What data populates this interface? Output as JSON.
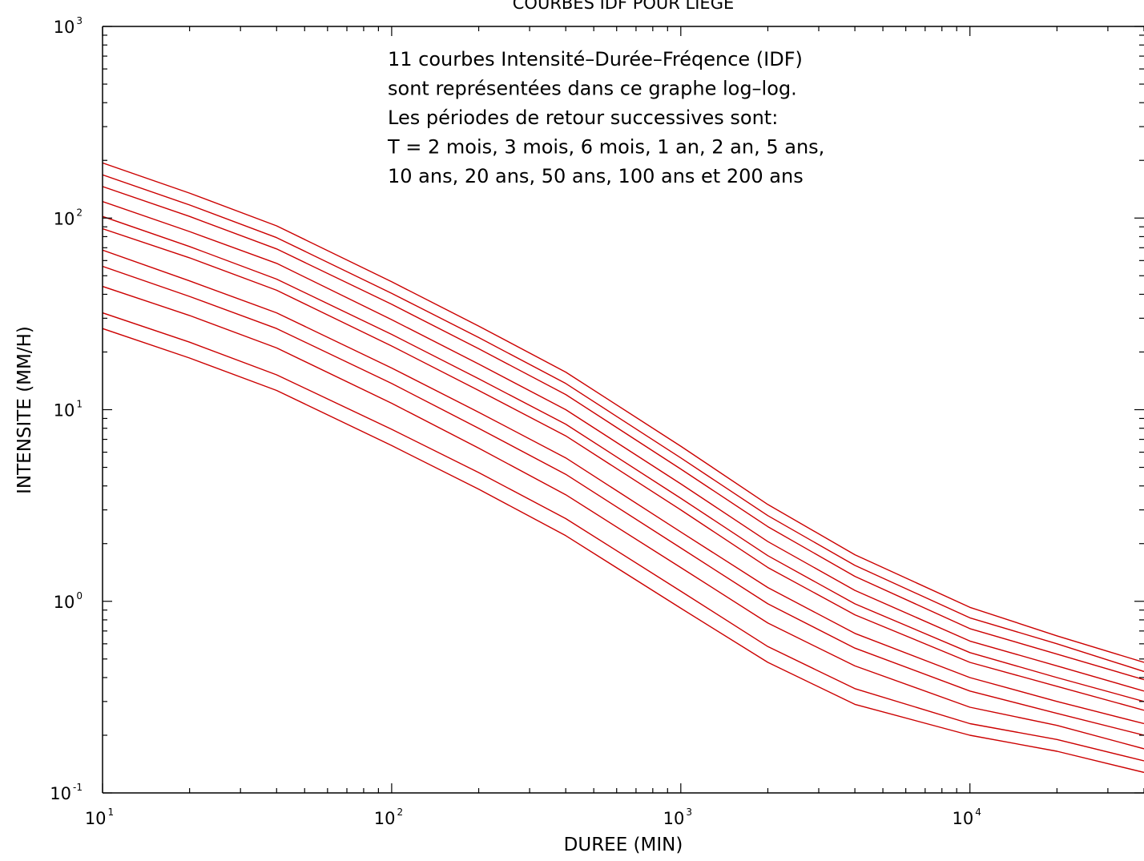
{
  "chart_data": {
    "type": "line",
    "title": "COURBES IDF POUR LIEGE",
    "xlabel": "DUREE (MIN)",
    "ylabel": "INTENSITE (MM/H)",
    "xscale": "log",
    "yscale": "log",
    "xlim": [
      10,
      40000
    ],
    "ylim": [
      0.1,
      1000
    ],
    "grid": false,
    "line_color": "#cc0000",
    "x_ticks": [
      {
        "base": "10",
        "exp": "1",
        "value": 10
      },
      {
        "base": "10",
        "exp": "2",
        "value": 100
      },
      {
        "base": "10",
        "exp": "3",
        "value": 1000
      },
      {
        "base": "10",
        "exp": "4",
        "value": 10000
      }
    ],
    "y_ticks": [
      {
        "base": "10",
        "exp": "-1",
        "value": 0.1
      },
      {
        "base": "10",
        "exp": "0",
        "value": 1
      },
      {
        "base": "10",
        "exp": "1",
        "value": 10
      },
      {
        "base": "10",
        "exp": "2",
        "value": 100
      },
      {
        "base": "10",
        "exp": "3",
        "value": 1000
      }
    ],
    "annotation": [
      "11 courbes Intensité–Durée–Fréqence (IDF)",
      "sont représentées dans ce graphe log–log.",
      "Les périodes de retour successives sont:",
      "T = 2 mois, 3 mois, 6 mois, 1 an, 2 an, 5 ans,",
      "10 ans, 20 ans, 50 ans, 100 ans et 200 ans"
    ],
    "x": [
      10,
      20,
      40,
      100,
      200,
      400,
      1000,
      2000,
      4000,
      10000,
      20000,
      40000
    ],
    "series": [
      {
        "values": [
          26.5,
          18.6,
          12.6,
          6.5,
          3.85,
          2.2,
          0.92,
          0.48,
          0.29,
          0.2,
          0.165,
          0.128
        ]
      },
      {
        "values": [
          32,
          22.5,
          15.2,
          7.9,
          4.7,
          2.7,
          1.13,
          0.58,
          0.35,
          0.23,
          0.19,
          0.147
        ]
      },
      {
        "values": [
          44,
          31,
          21,
          10.8,
          6.3,
          3.6,
          1.5,
          0.77,
          0.46,
          0.28,
          0.225,
          0.17
        ]
      },
      {
        "values": [
          56,
          39,
          26.5,
          13.7,
          8,
          4.6,
          1.9,
          0.97,
          0.57,
          0.34,
          0.26,
          0.2
        ]
      },
      {
        "values": [
          68,
          47,
          32,
          16.5,
          9.7,
          5.6,
          2.3,
          1.18,
          0.68,
          0.4,
          0.3,
          0.23
        ]
      },
      {
        "values": [
          88,
          62,
          42,
          21.5,
          12.6,
          7.3,
          3,
          1.5,
          0.85,
          0.48,
          0.36,
          0.27
        ]
      },
      {
        "values": [
          102,
          71,
          48,
          24.7,
          14.5,
          8.4,
          3.45,
          1.73,
          0.97,
          0.54,
          0.4,
          0.3
        ]
      },
      {
        "values": [
          122,
          85,
          58,
          29.5,
          17.3,
          10,
          4.1,
          2.05,
          1.14,
          0.62,
          0.46,
          0.34
        ]
      },
      {
        "values": [
          146,
          102,
          69,
          35.5,
          20.8,
          12,
          4.9,
          2.45,
          1.35,
          0.72,
          0.53,
          0.39
        ]
      },
      {
        "values": [
          168,
          117,
          79,
          40.5,
          23.8,
          13.7,
          5.6,
          2.8,
          1.54,
          0.82,
          0.6,
          0.43
        ]
      },
      {
        "values": [
          194,
          135,
          91,
          46.5,
          27.3,
          15.7,
          6.45,
          3.2,
          1.75,
          0.93,
          0.66,
          0.48
        ]
      }
    ]
  }
}
